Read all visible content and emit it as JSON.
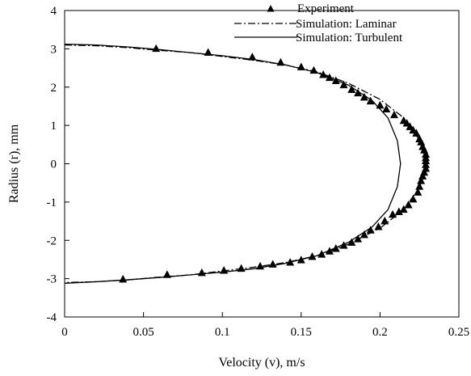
{
  "chart_data": {
    "type": "line",
    "title": "",
    "xlabel": "Velocity (v), m/s",
    "ylabel": "Radius (r), mm",
    "xlim": [
      0,
      0.25
    ],
    "ylim": [
      -4,
      4
    ],
    "xticks": [
      0,
      0.05,
      0.1,
      0.15,
      0.2,
      0.25
    ],
    "yticks": [
      4,
      3,
      2,
      1,
      0,
      -1,
      -2,
      -3,
      -4
    ],
    "xtick_labels": [
      "0",
      "0.05",
      "0.1",
      "0.15",
      "0.2",
      "0.25"
    ],
    "ytick_labels": [
      "4",
      "3",
      "2",
      "1",
      "0",
      "-1",
      "-2",
      "-3",
      "-4"
    ],
    "grid": false,
    "legend_position": "top-right",
    "series": [
      {
        "name": "Experiment",
        "style": "markers",
        "marker": "triangle",
        "color": "#000000",
        "points": [
          [
            0.058,
            3.0
          ],
          [
            0.091,
            2.9
          ],
          [
            0.119,
            2.78
          ],
          [
            0.137,
            2.64
          ],
          [
            0.15,
            2.52
          ],
          [
            0.158,
            2.43
          ],
          [
            0.164,
            2.32
          ],
          [
            0.168,
            2.24
          ],
          [
            0.172,
            2.16
          ],
          [
            0.177,
            2.05
          ],
          [
            0.182,
            1.93
          ],
          [
            0.186,
            1.84
          ],
          [
            0.19,
            1.73
          ],
          [
            0.194,
            1.63
          ],
          [
            0.2,
            1.52
          ],
          [
            0.204,
            1.42
          ],
          [
            0.209,
            1.27
          ],
          [
            0.215,
            1.12
          ],
          [
            0.217,
            1.05
          ],
          [
            0.219,
            0.96
          ],
          [
            0.221,
            0.87
          ],
          [
            0.223,
            0.79
          ],
          [
            0.225,
            0.64
          ],
          [
            0.226,
            0.56
          ],
          [
            0.227,
            0.44
          ],
          [
            0.228,
            0.35
          ],
          [
            0.229,
            0.24
          ],
          [
            0.229,
            0.15
          ],
          [
            0.229,
            0.07
          ],
          [
            0.229,
            -0.03
          ],
          [
            0.229,
            -0.13
          ],
          [
            0.228,
            -0.23
          ],
          [
            0.227,
            -0.33
          ],
          [
            0.226,
            -0.45
          ],
          [
            0.225,
            -0.6
          ],
          [
            0.224,
            -0.75
          ],
          [
            0.221,
            -0.93
          ],
          [
            0.218,
            -1.08
          ],
          [
            0.215,
            -1.2
          ],
          [
            0.212,
            -1.26
          ],
          [
            0.208,
            -1.33
          ],
          [
            0.203,
            -1.5
          ],
          [
            0.199,
            -1.65
          ],
          [
            0.194,
            -1.74
          ],
          [
            0.19,
            -1.86
          ],
          [
            0.186,
            -1.97
          ],
          [
            0.182,
            -2.06
          ],
          [
            0.177,
            -2.14
          ],
          [
            0.172,
            -2.22
          ],
          [
            0.168,
            -2.29
          ],
          [
            0.163,
            -2.37
          ],
          [
            0.157,
            -2.43
          ],
          [
            0.15,
            -2.52
          ],
          [
            0.143,
            -2.58
          ],
          [
            0.132,
            -2.63
          ],
          [
            0.124,
            -2.68
          ],
          [
            0.112,
            -2.74
          ],
          [
            0.101,
            -2.79
          ],
          [
            0.087,
            -2.85
          ],
          [
            0.065,
            -2.9
          ],
          [
            0.037,
            -3.02
          ]
        ]
      },
      {
        "name": "Simulation: Laminar",
        "style": "dashdot",
        "color": "#000000",
        "points": [
          [
            0,
            3.1
          ],
          [
            0.02,
            3.08
          ],
          [
            0.04,
            3.03
          ],
          [
            0.06,
            2.96
          ],
          [
            0.08,
            2.9
          ],
          [
            0.1,
            2.8
          ],
          [
            0.12,
            2.7
          ],
          [
            0.14,
            2.58
          ],
          [
            0.16,
            2.4
          ],
          [
            0.18,
            2.1
          ],
          [
            0.2,
            1.68
          ],
          [
            0.215,
            1.2
          ],
          [
            0.225,
            0.62
          ],
          [
            0.23,
            0.0
          ],
          [
            0.225,
            -0.62
          ],
          [
            0.215,
            -1.2
          ],
          [
            0.2,
            -1.68
          ],
          [
            0.18,
            -2.1
          ],
          [
            0.16,
            -2.4
          ],
          [
            0.14,
            -2.58
          ],
          [
            0.12,
            -2.7
          ],
          [
            0.1,
            -2.8
          ],
          [
            0.08,
            -2.9
          ],
          [
            0.06,
            -2.96
          ],
          [
            0.04,
            -3.03
          ],
          [
            0.02,
            -3.08
          ],
          [
            0,
            -3.1
          ]
        ]
      },
      {
        "name": "Simulation: Turbulent",
        "style": "solid",
        "color": "#000000",
        "points": [
          [
            0,
            3.12
          ],
          [
            0.02,
            3.1
          ],
          [
            0.04,
            3.05
          ],
          [
            0.06,
            2.98
          ],
          [
            0.08,
            2.9
          ],
          [
            0.1,
            2.82
          ],
          [
            0.12,
            2.72
          ],
          [
            0.14,
            2.58
          ],
          [
            0.16,
            2.38
          ],
          [
            0.18,
            2.05
          ],
          [
            0.195,
            1.65
          ],
          [
            0.205,
            1.2
          ],
          [
            0.211,
            0.6
          ],
          [
            0.213,
            0.0
          ],
          [
            0.211,
            -0.6
          ],
          [
            0.205,
            -1.2
          ],
          [
            0.195,
            -1.65
          ],
          [
            0.18,
            -2.05
          ],
          [
            0.16,
            -2.4
          ],
          [
            0.14,
            -2.6
          ],
          [
            0.12,
            -2.74
          ],
          [
            0.1,
            -2.83
          ],
          [
            0.08,
            -2.9
          ],
          [
            0.06,
            -2.97
          ],
          [
            0.04,
            -3.03
          ],
          [
            0.02,
            -3.08
          ],
          [
            0,
            -3.12
          ]
        ]
      }
    ]
  }
}
